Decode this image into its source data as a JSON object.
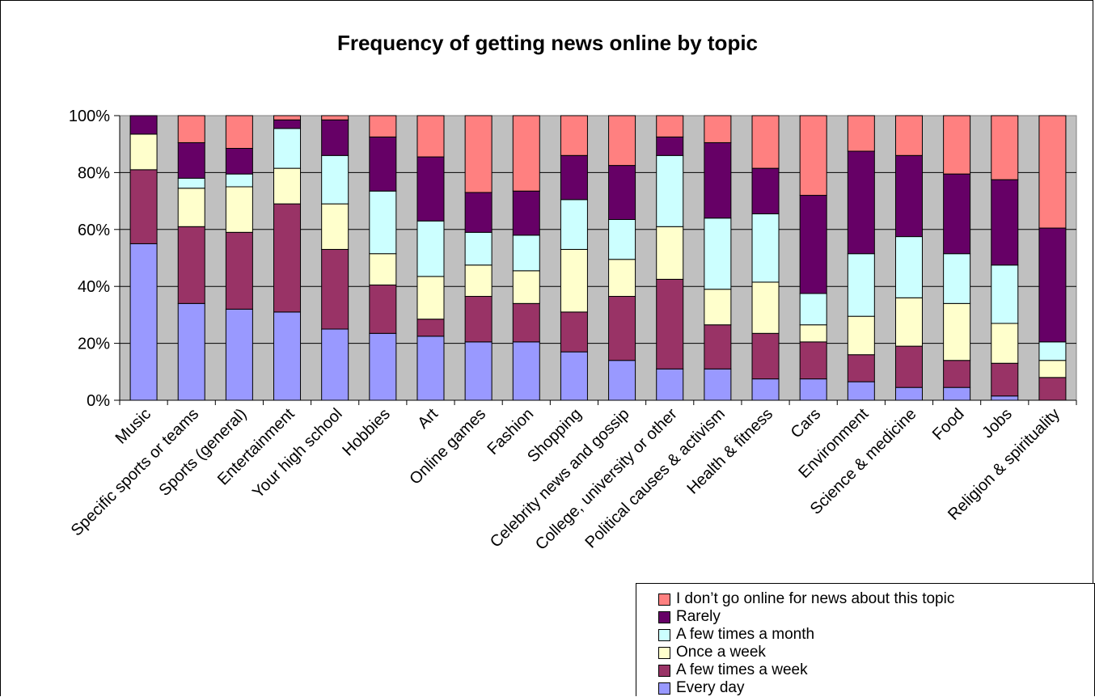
{
  "chart_data": {
    "type": "bar",
    "stacked": true,
    "percent": true,
    "title": "Frequency of getting news online by topic",
    "xlabel": "",
    "ylabel": "",
    "ylim": [
      0,
      100
    ],
    "yticks": [
      "0%",
      "20%",
      "40%",
      "60%",
      "80%",
      "100%"
    ],
    "grid": true,
    "legend_position": "bottom-right",
    "categories": [
      "Music",
      "Specific sports or teams",
      "Sports (general)",
      "Entertainment",
      "Your high school",
      "Hobbies",
      "Art",
      "Online games",
      "Fashion",
      "Shopping",
      "Celebrity news and gossip",
      "College, university or other",
      "Political causes & activism",
      "Health & fitness",
      "Cars",
      "Environment",
      "Science & medicine",
      "Food",
      "Jobs",
      "Religion & spirituality"
    ],
    "series": [
      {
        "name": "Every day",
        "color": "#9999ff",
        "values": [
          55,
          34,
          32,
          31,
          25,
          23.5,
          22.5,
          20.5,
          20.5,
          17,
          14,
          11,
          11,
          7.5,
          7.5,
          6.5,
          4.5,
          4.5,
          1.5,
          0
        ]
      },
      {
        "name": "A few times a week",
        "color": "#993366",
        "values": [
          26,
          27,
          27,
          38,
          28,
          17,
          6,
          16,
          13.5,
          14,
          22.5,
          31.5,
          15.5,
          16,
          13,
          9.5,
          14.5,
          9.5,
          11.5,
          8
        ]
      },
      {
        "name": "Once a week",
        "color": "#ffffcc",
        "values": [
          12.5,
          13.5,
          16,
          12.5,
          16,
          11,
          15,
          11,
          11.5,
          22,
          13,
          18.5,
          12.5,
          18,
          6,
          13.5,
          17,
          20,
          14,
          6
        ]
      },
      {
        "name": "A few times a month",
        "color": "#ccffff",
        "values": [
          0,
          3.5,
          4.5,
          14,
          17,
          22,
          19.5,
          11.5,
          12.5,
          17.5,
          14,
          25,
          25,
          24,
          11,
          22,
          21.5,
          17.5,
          20.5,
          6.5
        ]
      },
      {
        "name": "Rarely",
        "color": "#660066",
        "values": [
          6.5,
          12.5,
          9,
          3,
          12.5,
          19,
          22.5,
          14,
          15.5,
          15.5,
          19,
          6.5,
          26.5,
          16,
          34.5,
          36,
          28.5,
          28,
          30,
          40
        ]
      },
      {
        "name": "I don’t go online for news about this topic",
        "color": "#ff8080",
        "values": [
          0,
          9.5,
          11.5,
          1.5,
          1.5,
          7.5,
          14.5,
          27,
          26.5,
          14,
          17.5,
          7.5,
          9.5,
          18.5,
          28,
          12.5,
          14,
          20.5,
          22.5,
          39.5
        ]
      }
    ]
  }
}
